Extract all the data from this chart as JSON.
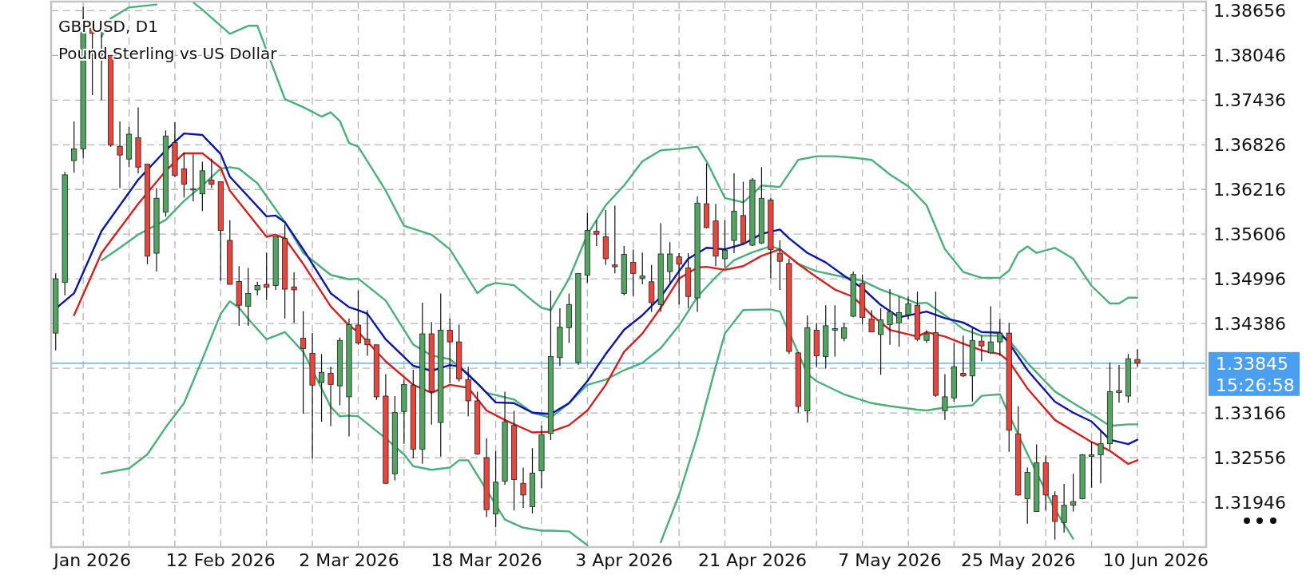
{
  "chart_data": {
    "type": "candlestick",
    "title": "GBPUSD, D1",
    "subtitle": "Pound Sterling vs US Dollar",
    "categories": [
      null,
      null,
      null,
      null,
      "Jan 2026",
      null,
      null,
      null,
      null,
      null,
      null,
      null,
      null,
      null,
      null,
      null,
      null,
      null,
      "12 Feb 2026",
      null,
      null,
      null,
      null,
      null,
      null,
      null,
      null,
      null,
      null,
      null,
      null,
      null,
      "2 Mar 2026",
      null,
      null,
      null,
      null,
      null,
      null,
      null,
      null,
      null,
      null,
      null,
      null,
      null,
      null,
      "18 Mar 2026",
      null,
      null,
      null,
      null,
      null,
      null,
      null,
      null,
      null,
      null,
      null,
      null,
      null,
      null,
      "3 Apr 2026",
      null,
      null,
      null,
      null,
      null,
      null,
      null,
      null,
      null,
      null,
      null,
      null,
      null,
      "21 Apr 2026",
      null,
      null,
      null,
      null,
      null,
      null,
      null,
      null,
      null,
      null,
      null,
      null,
      null,
      null,
      "7 May 2026",
      null,
      null,
      null,
      null,
      null,
      null,
      null,
      null,
      null,
      null,
      null,
      null,
      null,
      "25 May 2026",
      null,
      null,
      null,
      null,
      null,
      null,
      null,
      null,
      null,
      null,
      null,
      null,
      null,
      null,
      "10 Jun 2026",
      null,
      null,
      null,
      null,
      null
    ],
    "ohlc": [
      [
        1.34256,
        1.35071,
        1.34021,
        1.34996
      ],
      [
        1.34946,
        1.36456,
        1.34771,
        1.36416
      ],
      [
        1.36611,
        1.37146,
        1.36446,
        1.36771
      ],
      [
        1.36771,
        1.38706,
        1.36646,
        1.38471
      ],
      [
        1.38446,
        1.38446,
        1.37506,
        1.38346
      ],
      [
        1.38096,
        1.38371,
        1.37436,
        1.38056
      ],
      [
        1.38046,
        1.38046,
        1.36796,
        1.36821
      ],
      [
        1.36806,
        1.37146,
        1.36236,
        1.36686
      ],
      [
        1.36631,
        1.37071,
        1.36521,
        1.36971
      ],
      [
        1.36921,
        1.37336,
        1.36436,
        1.36521
      ],
      [
        1.36561,
        1.36561,
        1.35196,
        1.35306
      ],
      [
        1.35346,
        1.36236,
        1.35096,
        1.36096
      ],
      [
        1.35906,
        1.37021,
        1.35846,
        1.36946
      ],
      [
        1.36856,
        1.37131,
        1.36386,
        1.36406
      ],
      [
        1.36496,
        1.36721,
        1.36106,
        1.36286
      ],
      [
        1.36211,
        1.36696,
        1.36056,
        1.36226
      ],
      [
        1.36156,
        1.36596,
        1.35921,
        1.36471
      ],
      [
        1.36346,
        1.36636,
        1.36236,
        1.36286
      ],
      [
        1.36321,
        1.36321,
        1.34971,
        1.35656
      ],
      [
        1.35521,
        1.35796,
        1.34921,
        1.34921
      ],
      [
        1.34961,
        1.35171,
        1.34356,
        1.34636
      ],
      [
        1.34621,
        1.35146,
        1.34356,
        1.34796
      ],
      [
        1.34846,
        1.34956,
        1.34771,
        1.34906
      ],
      [
        1.34921,
        1.35356,
        1.34706,
        1.34881
      ],
      [
        1.34906,
        1.35571,
        1.34846,
        1.35571
      ],
      [
        1.35546,
        1.35736,
        1.34456,
        1.34856
      ],
      [
        1.34886,
        1.35086,
        1.34396,
        1.34846
      ],
      [
        1.34186,
        1.34556,
        1.33156,
        1.34046
      ],
      [
        1.33981,
        1.34256,
        1.32546,
        1.33546
      ],
      [
        1.33581,
        1.33971,
        1.33046,
        1.33721
      ],
      [
        1.33706,
        1.33796,
        1.32986,
        1.33556
      ],
      [
        1.33536,
        1.34196,
        1.33271,
        1.34156
      ],
      [
        1.33386,
        1.34456,
        1.32846,
        1.34371
      ],
      [
        1.34366,
        1.34836,
        1.34096,
        1.34121
      ],
      [
        1.34171,
        1.34571,
        1.33946,
        1.34096
      ],
      [
        1.34096,
        1.34096,
        1.33346,
        1.33386
      ],
      [
        1.33396,
        1.33696,
        1.32196,
        1.32206
      ],
      [
        1.32336,
        1.33396,
        1.32246,
        1.33171
      ],
      [
        1.33186,
        1.33621,
        1.32746,
        1.33556
      ],
      [
        1.33546,
        1.33756,
        1.32546,
        1.32671
      ],
      [
        1.32671,
        1.34671,
        1.32471,
        1.34246
      ],
      [
        1.34246,
        1.34406,
        1.33006,
        1.33456
      ],
      [
        1.33036,
        1.34796,
        1.32571,
        1.34296
      ],
      [
        1.34296,
        1.34456,
        1.33571,
        1.34136
      ],
      [
        1.34136,
        1.34371,
        1.33596,
        1.33631
      ],
      [
        1.33621,
        1.33796,
        1.33121,
        1.33331
      ],
      [
        1.33331,
        1.33456,
        1.32596,
        1.32606
      ],
      [
        1.32556,
        1.32821,
        1.31746,
        1.31846
      ],
      [
        1.31786,
        1.32646,
        1.31606,
        1.32221
      ],
      [
        1.32236,
        1.33456,
        1.32186,
        1.33046
      ],
      [
        1.32996,
        1.33196,
        1.31836,
        1.32256
      ],
      [
        1.32206,
        1.32421,
        1.31871,
        1.32046
      ],
      [
        1.31886,
        1.32686,
        1.31796,
        1.32346
      ],
      [
        1.32376,
        1.32996,
        1.32136,
        1.32871
      ],
      [
        1.32886,
        1.34836,
        1.32796,
        1.33936
      ],
      [
        1.33921,
        1.34596,
        1.33806,
        1.34336
      ],
      [
        1.34331,
        1.34796,
        1.34121,
        1.34646
      ],
      [
        1.33856,
        1.35071,
        1.33821,
        1.35071
      ],
      [
        1.35046,
        1.35896,
        1.34946,
        1.35656
      ],
      [
        1.35646,
        1.35796,
        1.35446,
        1.35606
      ],
      [
        1.35571,
        1.35936,
        1.35186,
        1.35271
      ],
      [
        1.35186,
        1.35996,
        1.35071,
        1.35161
      ],
      [
        1.34796,
        1.35446,
        1.34771,
        1.35331
      ],
      [
        1.35221,
        1.35396,
        1.34756,
        1.35071
      ],
      [
        1.35006,
        1.35356,
        1.34921,
        1.35036
      ],
      [
        1.34956,
        1.35186,
        1.34546,
        1.34671
      ],
      [
        1.34646,
        1.35756,
        1.34546,
        1.35336
      ],
      [
        1.35096,
        1.35496,
        1.34946,
        1.35336
      ],
      [
        1.35296,
        1.35346,
        1.34646,
        1.35196
      ],
      [
        1.35146,
        1.35346,
        1.34596,
        1.34756
      ],
      [
        1.34736,
        1.36121,
        1.34546,
        1.36031
      ],
      [
        1.36021,
        1.36571,
        1.35686,
        1.35696
      ],
      [
        1.35786,
        1.36021,
        1.35171,
        1.35306
      ],
      [
        1.35271,
        1.35796,
        1.35156,
        1.35386
      ],
      [
        1.35521,
        1.36436,
        1.35346,
        1.35921
      ],
      [
        1.35861,
        1.36321,
        1.35471,
        1.35486
      ],
      [
        1.35456,
        1.36371,
        1.35446,
        1.36346
      ],
      [
        1.35486,
        1.36521,
        1.35471,
        1.36096
      ],
      [
        1.36071,
        1.36096,
        1.35006,
        1.35396
      ],
      [
        1.35346,
        1.35521,
        1.34846,
        1.35236
      ],
      [
        1.35206,
        1.35271,
        1.33971,
        1.34006
      ],
      [
        1.33986,
        1.33996,
        1.33171,
        1.33256
      ],
      [
        1.33196,
        1.34496,
        1.33036,
        1.34331
      ],
      [
        1.34296,
        1.34396,
        1.33796,
        1.33946
      ],
      [
        1.33936,
        1.34636,
        1.33771,
        1.34356
      ],
      [
        1.34296,
        1.34636,
        1.33936,
        1.34316
      ],
      [
        1.34186,
        1.34396,
        1.34146,
        1.34331
      ],
      [
        1.34486,
        1.35096,
        1.34471,
        1.35056
      ],
      [
        1.34936,
        1.35056,
        1.34371,
        1.34471
      ],
      [
        1.34446,
        1.34571,
        1.34271,
        1.34271
      ],
      [
        1.34236,
        1.34596,
        1.33686,
        1.34436
      ],
      [
        1.34371,
        1.34856,
        1.34096,
        1.34546
      ],
      [
        1.34396,
        1.34756,
        1.34071,
        1.34536
      ],
      [
        1.34506,
        1.34756,
        1.34446,
        1.34656
      ],
      [
        1.34636,
        1.34821,
        1.34146,
        1.34171
      ],
      [
        1.34156,
        1.34296,
        1.34121,
        1.34246
      ],
      [
        1.34261,
        1.34821,
        1.33386,
        1.33406
      ],
      [
        1.33196,
        1.33696,
        1.33071,
        1.33386
      ],
      [
        1.33371,
        1.34121,
        1.33321,
        1.33796
      ],
      [
        1.33706,
        1.34221,
        1.33656,
        1.33671
      ],
      [
        1.33671,
        1.34321,
        1.33321,
        1.34156
      ],
      [
        1.34146,
        1.34221,
        1.33871,
        1.34081
      ],
      [
        1.33986,
        1.34621,
        1.33971,
        1.34136
      ],
      [
        1.34136,
        1.34446,
        1.33946,
        1.34256
      ],
      [
        1.34256,
        1.34396,
        1.32636,
        1.32931
      ],
      [
        1.32881,
        1.33256,
        1.32036,
        1.32046
      ],
      [
        1.31996,
        1.32421,
        1.31656,
        1.32356
      ],
      [
        1.31821,
        1.32736,
        1.31821,
        1.32486
      ],
      [
        1.32486,
        1.32586,
        1.31836,
        1.32046
      ],
      [
        1.32036,
        1.32096,
        1.31436,
        1.31686
      ],
      [
        1.31671,
        1.32196,
        1.31536,
        1.31906
      ],
      [
        1.31906,
        1.32336,
        1.31821,
        1.31956
      ],
      [
        1.31996,
        1.32606,
        1.31986,
        1.32596
      ],
      [
        1.32571,
        1.32771,
        1.32146,
        1.32596
      ],
      [
        1.32596,
        1.32921,
        1.32206,
        1.32746
      ],
      [
        1.32746,
        1.33856,
        1.32671,
        1.33456
      ],
      [
        1.33446,
        1.33821,
        1.33306,
        1.33471
      ],
      [
        1.33396,
        1.33971,
        1.33306,
        1.33906
      ],
      [
        1.33896,
        1.34036,
        1.33796,
        1.33845
      ],
      null,
      null,
      null,
      null,
      null,
      null,
      null
    ],
    "series": [
      {
        "type": "line",
        "color": "#4caf7a",
        "values": [
          null,
          null,
          null,
          null,
          null,
          1.383,
          1.3855,
          null,
          1.387,
          null,
          null,
          1.3874,
          null,
          null,
          null,
          null,
          null,
          null,
          null,
          null,
          null,
          null,
          null,
          null,
          null,
          null,
          null,
          null,
          null,
          null,
          null,
          null,
          null,
          null,
          null,
          null,
          null,
          null,
          null,
          null,
          null,
          null,
          null,
          null,
          null,
          null,
          null,
          null,
          null,
          null,
          null,
          null,
          null,
          null,
          null,
          null,
          null,
          null,
          null,
          null,
          null,
          null,
          null,
          null,
          null,
          null,
          null,
          null,
          null,
          null,
          null,
          null,
          null,
          null,
          null,
          null,
          null,
          null,
          null,
          null,
          null,
          null,
          null,
          null,
          null,
          null,
          null,
          null,
          null,
          null,
          null,
          null,
          null,
          null,
          null,
          null,
          null,
          null,
          null,
          null,
          null,
          null,
          null,
          null,
          null,
          null,
          null,
          null,
          null,
          null,
          null,
          null,
          null,
          null,
          null,
          null,
          null,
          null,
          null,
          null,
          null,
          null,
          null,
          null,
          null,
          null
        ]
      },
      {
        "type": "line",
        "color": "#4caf7a",
        "values": [
          null,
          null,
          null,
          null,
          null,
          null,
          null,
          null,
          null,
          null,
          null,
          null,
          null,
          null,
          null,
          1.3877,
          1.3867,
          null,
          null,
          1.3834,
          null,
          1.3845,
          1.3845,
          null,
          null,
          1.3745,
          null,
          1.3734,
          null,
          1.3721,
          1.3727,
          1.3715,
          1.3685,
          1.368,
          null,
          null,
          1.362,
          null,
          1.3572,
          null,
          null,
          1.356,
          null,
          1.354,
          null,
          1.35,
          1.348,
          1.349,
          1.3494,
          null,
          1.3491,
          null,
          1.347,
          1.346,
          1.3457,
          null,
          1.35,
          null,
          1.356,
          null,
          1.36,
          null,
          1.3627,
          null,
          1.366,
          null,
          1.3675,
          null,
          1.3677,
          null,
          1.368,
          1.366,
          null,
          1.361,
          1.3607,
          1.3604,
          1.3615,
          1.3627,
          null,
          1.3625,
          null,
          1.3662,
          null,
          1.3667,
          null,
          1.3667,
          null,
          1.3665,
          null,
          1.3662,
          null,
          1.3642,
          null,
          1.3626,
          null,
          1.36,
          null,
          1.354,
          null,
          1.3509,
          null,
          1.3501,
          null,
          1.3501,
          1.3511,
          1.3535,
          1.3544,
          1.3535,
          null,
          1.3542,
          null,
          1.3527,
          null,
          1.349,
          null,
          1.3466,
          1.3466,
          1.3474,
          1.3474,
          null,
          null,
          null,
          null,
          null,
          null,
          null
        ]
      },
      {
        "type": "line",
        "color": "#4caf7a",
        "values": [
          null,
          null,
          null,
          null,
          null,
          1.3525,
          null,
          1.3542,
          null,
          1.356,
          null,
          null,
          1.358,
          null,
          1.3606,
          null,
          1.3627,
          null,
          1.365,
          1.3652,
          1.365,
          null,
          1.363,
          null,
          null,
          1.3577,
          null,
          1.3535,
          null,
          null,
          1.3505,
          null,
          1.3499,
          1.35,
          null,
          null,
          1.347,
          null,
          null,
          1.341,
          null,
          1.3395,
          null,
          1.339,
          null,
          1.337,
          null,
          1.3344,
          null,
          null,
          1.3335,
          null,
          1.3317,
          null,
          1.331,
          null,
          1.333,
          null,
          1.3355,
          null,
          1.3362,
          null,
          1.3375,
          null,
          1.3385,
          null,
          1.3405,
          null,
          1.3436,
          null,
          1.3475,
          null,
          1.3502,
          null,
          1.3525,
          null,
          1.3536,
          null,
          1.3544,
          1.354,
          null,
          1.352,
          null,
          1.351,
          null,
          null,
          1.3502,
          null,
          1.3497,
          null,
          1.3485,
          null,
          1.3476,
          null,
          1.3466,
          1.3467,
          null,
          1.345,
          null,
          1.3431,
          null,
          1.3422,
          null,
          1.3422,
          1.3416,
          null,
          1.3385,
          null,
          null,
          1.3346,
          null,
          1.333,
          null,
          1.3315,
          null,
          1.3299,
          null,
          1.3301,
          1.3301,
          null,
          null,
          null,
          null,
          null,
          null,
          null
        ]
      },
      {
        "type": "line",
        "color": "#4caf7a",
        "values": [
          null,
          null,
          null,
          null,
          null,
          1.3234,
          null,
          null,
          1.3241,
          null,
          1.326,
          null,
          1.3297,
          null,
          1.333,
          null,
          1.339,
          null,
          1.3452,
          1.3469,
          1.346,
          1.3445,
          null,
          1.3417,
          null,
          1.3427,
          null,
          1.34,
          null,
          null,
          1.3325,
          1.3312,
          1.3313,
          1.3312,
          null,
          null,
          1.3282,
          null,
          1.326,
          1.3244,
          null,
          1.3239,
          null,
          1.3242,
          1.3252,
          1.3252,
          null,
          null,
          null,
          1.3171,
          null,
          1.316,
          null,
          1.3156,
          1.3156,
          null,
          1.3155,
          null,
          1.3136,
          null,
          null,
          null,
          null,
          null,
          null,
          null,
          null,
          null,
          null,
          null,
          null,
          null,
          null,
          null,
          null,
          null,
          null,
          null,
          null,
          null,
          null,
          null,
          null,
          null,
          null,
          null,
          null,
          null,
          null,
          null,
          null,
          null,
          null,
          null,
          null,
          null,
          null,
          null,
          null,
          null,
          null,
          null,
          null,
          null,
          null,
          null,
          null,
          null,
          null,
          null,
          null,
          null,
          null,
          null,
          null,
          null,
          null,
          null,
          null,
          null,
          null,
          null,
          null,
          null,
          null,
          null
        ]
      },
      {
        "type": "line",
        "color": "#4caf7a",
        "values": [
          null,
          null,
          null,
          null,
          null,
          null,
          null,
          null,
          null,
          null,
          null,
          null,
          null,
          null,
          null,
          null,
          null,
          null,
          null,
          null,
          null,
          null,
          null,
          null,
          null,
          null,
          null,
          null,
          null,
          null,
          null,
          null,
          null,
          null,
          null,
          null,
          null,
          null,
          null,
          null,
          null,
          null,
          null,
          null,
          null,
          null,
          null,
          null,
          null,
          null,
          null,
          null,
          null,
          null,
          null,
          null,
          null,
          null,
          null,
          null,
          null,
          null,
          null,
          null,
          null,
          null,
          1.314,
          null,
          1.3205,
          null,
          1.3285,
          null,
          1.338,
          1.3425,
          null,
          1.3457,
          null,
          null,
          1.3458,
          1.3455,
          null,
          null,
          1.337,
          1.336,
          null,
          null,
          1.3342,
          null,
          null,
          1.333,
          null,
          1.3326,
          null,
          null,
          1.3321,
          1.332,
          null,
          1.3324,
          null,
          null,
          1.3327,
          1.334,
          null,
          1.3342,
          null,
          1.3287,
          null,
          1.3235,
          null,
          1.3185,
          null,
          1.3145,
          null,
          null,
          null,
          null,
          null,
          null,
          null,
          null,
          null,
          null,
          null,
          null,
          null,
          null
        ]
      },
      {
        "type": "line",
        "color": "#0b16a8",
        "values": [
          1.3459,
          null,
          1.348,
          null,
          null,
          1.3565,
          null,
          null,
          null,
          1.3635,
          null,
          null,
          1.3675,
          null,
          1.3698,
          null,
          1.3696,
          null,
          1.367,
          1.3639,
          null,
          null,
          null,
          1.3585,
          1.3586,
          1.3577,
          null,
          1.354,
          null,
          null,
          1.348,
          null,
          1.3461,
          1.3457,
          1.3452,
          null,
          1.3417,
          null,
          null,
          1.3381,
          null,
          1.3374,
          null,
          1.3382,
          1.338,
          null,
          1.3357,
          null,
          1.3331,
          null,
          1.333,
          null,
          1.3317,
          null,
          1.3315,
          null,
          1.333,
          null,
          1.336,
          null,
          1.3397,
          null,
          1.343,
          null,
          1.345,
          null,
          1.3475,
          null,
          1.351,
          1.3527,
          null,
          1.3542,
          null,
          1.354,
          null,
          1.3547,
          null,
          1.3561,
          null,
          1.3567,
          1.3555,
          null,
          1.3535,
          null,
          1.3522,
          null,
          1.3504,
          null,
          1.3487,
          null,
          1.3464,
          null,
          1.3447,
          null,
          null,
          1.3455,
          null,
          1.3446,
          null,
          1.344,
          null,
          1.3427,
          null,
          1.3426,
          1.3412,
          null,
          1.3375,
          null,
          null,
          1.3332,
          null,
          1.3317,
          null,
          1.3305,
          null,
          1.328,
          null,
          1.3274,
          1.328,
          null,
          null,
          null,
          null,
          null,
          null,
          null
        ]
      },
      {
        "type": "line",
        "color": "#d32121",
        "values": [
          null,
          null,
          1.345,
          null,
          null,
          1.3535,
          null,
          null,
          null,
          1.3602,
          null,
          null,
          1.3647,
          null,
          1.3671,
          null,
          1.3671,
          null,
          1.3651,
          1.362,
          null,
          null,
          null,
          1.3557,
          1.356,
          1.3555,
          null,
          1.352,
          null,
          null,
          1.3462,
          null,
          1.3436,
          1.3427,
          null,
          null,
          1.3387,
          null,
          null,
          1.3355,
          null,
          1.3344,
          null,
          1.3355,
          null,
          1.3351,
          null,
          1.332,
          null,
          1.3307,
          null,
          null,
          1.329,
          null,
          1.3291,
          null,
          1.33,
          null,
          1.332,
          null,
          1.3355,
          null,
          1.34,
          null,
          1.3425,
          null,
          1.346,
          null,
          1.35,
          null,
          1.3515,
          1.3516,
          null,
          1.3512,
          null,
          1.3517,
          null,
          1.3531,
          null,
          1.354,
          null,
          1.352,
          null,
          1.3502,
          null,
          1.3485,
          null,
          1.3475,
          null,
          1.345,
          null,
          1.343,
          null,
          null,
          1.3421,
          1.3427,
          null,
          1.3421,
          null,
          1.3411,
          null,
          1.3402,
          null,
          1.3397,
          1.3387,
          null,
          1.335,
          null,
          null,
          1.3307,
          null,
          1.3292,
          null,
          1.3277,
          null,
          1.3265,
          null,
          1.3247,
          1.3252,
          null,
          null,
          null,
          null,
          null,
          null,
          null
        ]
      }
    ],
    "ylim": [
      1.31336,
      1.3878
    ],
    "yticks": [
      1.31946,
      1.32556,
      1.33166,
      {
        "value": 1.33776,
        "label": null
      },
      1.34386,
      1.34996,
      1.35606,
      1.36216,
      1.36826,
      1.37436,
      1.38046,
      1.38656
    ],
    "grid": true,
    "ref_lines": [
      {
        "axis": "y",
        "value": 1.33845,
        "label": "1.33845",
        "color": "#4a9ff0"
      }
    ],
    "annotations": [
      "15:26:58"
    ]
  }
}
